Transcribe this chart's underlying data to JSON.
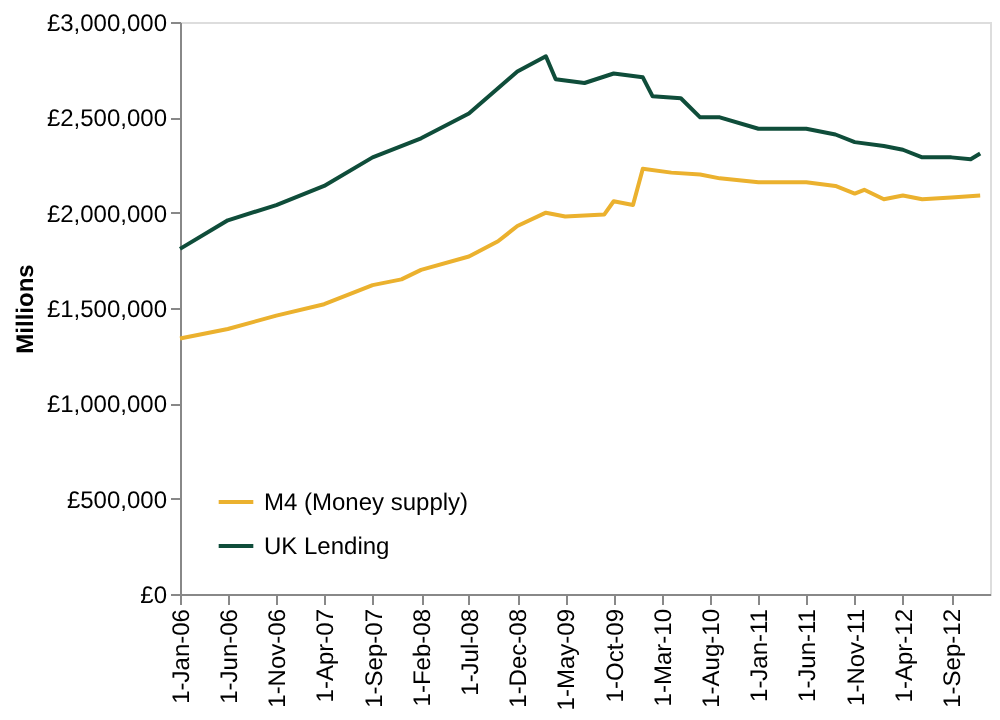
{
  "chart_data": {
    "type": "line",
    "ylabel": "Millions",
    "series": [
      {
        "name": "M4 (Money supply)",
        "color": "#ebb12e",
        "x": [
          "2006-01",
          "2006-06",
          "2006-11",
          "2007-04",
          "2007-09",
          "2007-12",
          "2008-02",
          "2008-07",
          "2008-10",
          "2008-12",
          "2009-03",
          "2009-05",
          "2009-09",
          "2009-10",
          "2009-12",
          "2010-01",
          "2010-04",
          "2010-07",
          "2010-09",
          "2011-01",
          "2011-06",
          "2011-09",
          "2011-11",
          "2011-12",
          "2012-02",
          "2012-04",
          "2012-06",
          "2012-09",
          "2012-12"
        ],
        "values": [
          1340000,
          1390000,
          1460000,
          1520000,
          1620000,
          1650000,
          1700000,
          1770000,
          1850000,
          1930000,
          2000000,
          1980000,
          1990000,
          2060000,
          2040000,
          2230000,
          2210000,
          2200000,
          2180000,
          2160000,
          2160000,
          2140000,
          2100000,
          2120000,
          2070000,
          2090000,
          2070000,
          2080000,
          2090000
        ]
      },
      {
        "name": "UK Lending",
        "color": "#0f4d3a",
        "x": [
          "2006-01",
          "2006-06",
          "2006-11",
          "2007-04",
          "2007-09",
          "2008-02",
          "2008-07",
          "2008-12",
          "2009-03",
          "2009-04",
          "2009-07",
          "2009-10",
          "2010-01",
          "2010-02",
          "2010-05",
          "2010-07",
          "2010-09",
          "2011-01",
          "2011-06",
          "2011-09",
          "2011-11",
          "2012-02",
          "2012-04",
          "2012-06",
          "2012-09",
          "2012-11",
          "2012-12"
        ],
        "values": [
          1810000,
          1960000,
          2040000,
          2140000,
          2290000,
          2390000,
          2520000,
          2740000,
          2820000,
          2700000,
          2680000,
          2730000,
          2710000,
          2610000,
          2600000,
          2500000,
          2500000,
          2440000,
          2440000,
          2410000,
          2370000,
          2350000,
          2330000,
          2290000,
          2290000,
          2280000,
          2310000
        ]
      }
    ],
    "xlim": [
      "2006-01-01",
      "2013-01-01"
    ],
    "xticks": [
      {
        "value": "2006-01-01",
        "label": "1-Jan-06"
      },
      {
        "value": "2006-06-01",
        "label": "1-Jun-06"
      },
      {
        "value": "2006-11-01",
        "label": "1-Nov-06"
      },
      {
        "value": "2007-04-01",
        "label": "1-Apr-07"
      },
      {
        "value": "2007-09-01",
        "label": "1-Sep-07"
      },
      {
        "value": "2008-02-01",
        "label": "1-Feb-08"
      },
      {
        "value": "2008-07-01",
        "label": "1-Jul-08"
      },
      {
        "value": "2008-12-01",
        "label": "1-Dec-08"
      },
      {
        "value": "2009-05-01",
        "label": "1-May-09"
      },
      {
        "value": "2009-10-01",
        "label": "1-Oct-09"
      },
      {
        "value": "2010-03-01",
        "label": "1-Mar-10"
      },
      {
        "value": "2010-08-01",
        "label": "1-Aug-10"
      },
      {
        "value": "2011-01-01",
        "label": "1-Jan-11"
      },
      {
        "value": "2011-06-01",
        "label": "1-Jun-11"
      },
      {
        "value": "2011-11-01",
        "label": "1-Nov-11"
      },
      {
        "value": "2012-04-01",
        "label": "1-Apr-12"
      },
      {
        "value": "2012-09-01",
        "label": "1-Sep-12"
      }
    ],
    "ylim": [
      0,
      3000000
    ],
    "yticks": [
      {
        "value": 0,
        "label": "£0"
      },
      {
        "value": 500000,
        "label": "£500,000"
      },
      {
        "value": 1000000,
        "label": "£1,000,000"
      },
      {
        "value": 1500000,
        "label": "£1,500,000"
      },
      {
        "value": 2000000,
        "label": "£2,000,000"
      },
      {
        "value": 2500000,
        "label": "£2,500,000"
      },
      {
        "value": 3000000,
        "label": "£3,000,000"
      }
    ],
    "grid": false,
    "legend": "bottom left",
    "line_style": "solid",
    "marker": "none"
  }
}
